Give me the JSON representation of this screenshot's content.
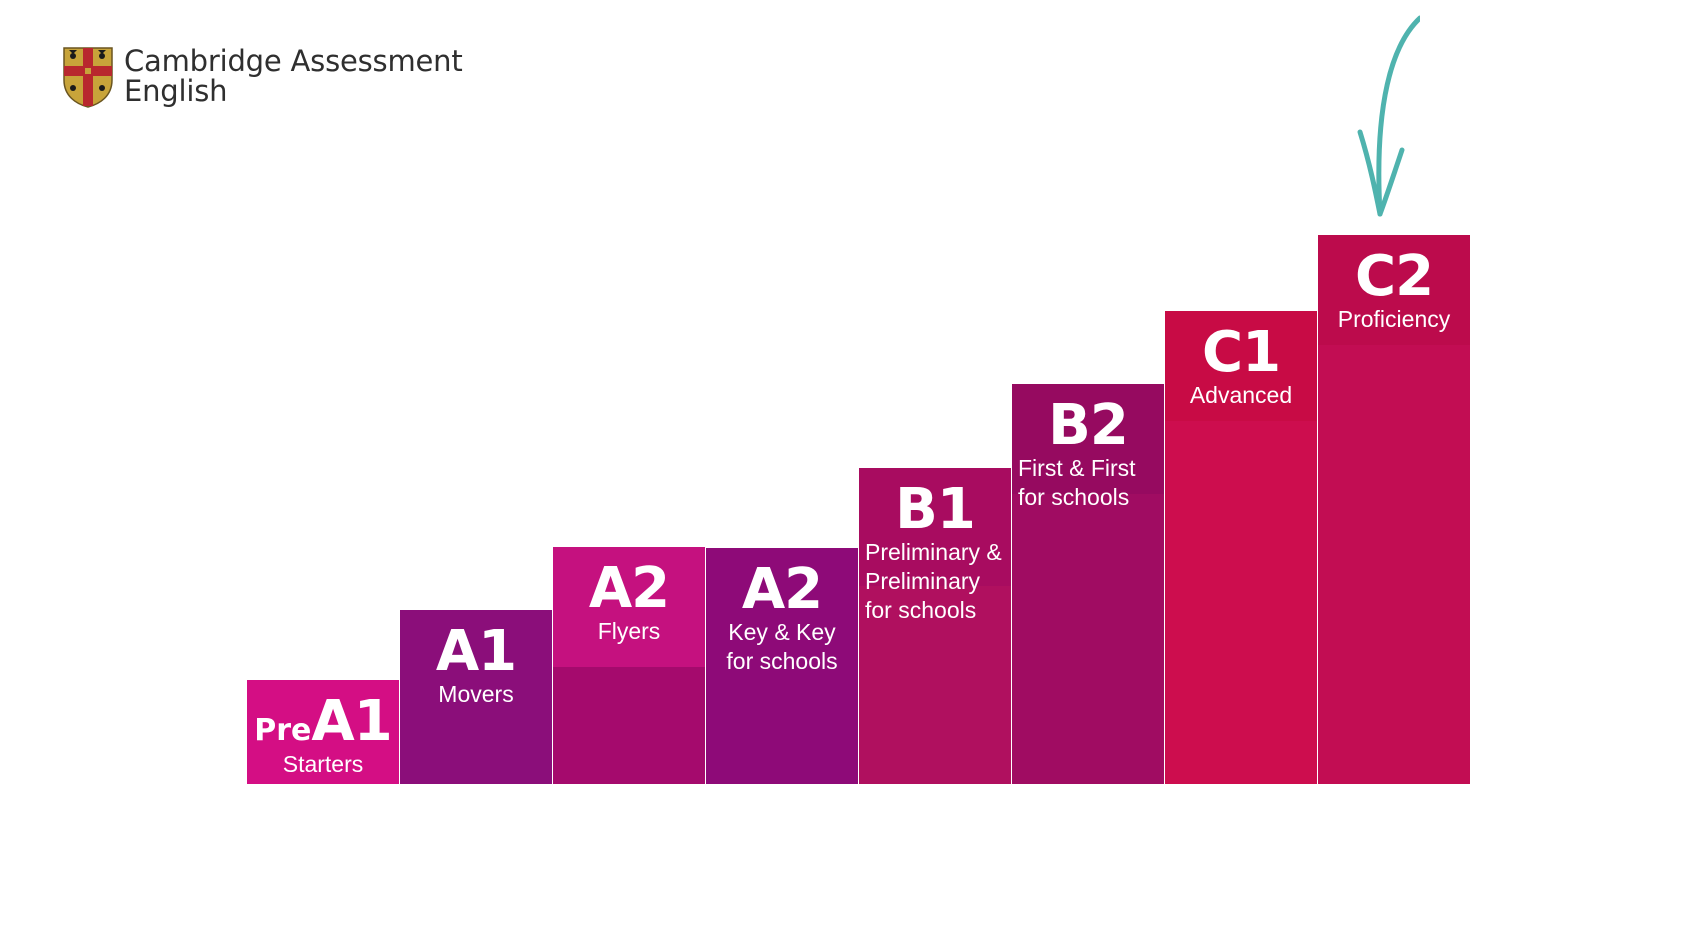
{
  "logo": {
    "line1": "Cambridge Assessment",
    "line2": "English"
  },
  "steps": [
    {
      "level_prefix": "Pre",
      "level": "A1",
      "exam": "Starters",
      "color": "#D40E84",
      "body_color": "#D40E84"
    },
    {
      "level": "A1",
      "exam": "Movers",
      "color": "#8B0E7A",
      "body_color": "#8B0E7A"
    },
    {
      "level": "A2",
      "exam": "Flyers",
      "color": "#C5117F",
      "body_color": "#A50A6D"
    },
    {
      "level": "A2",
      "exam": "Key & Key\nfor schools",
      "color": "#8E0A78",
      "body_color": "#8E0A78"
    },
    {
      "level": "B1",
      "exam": "Preliminary &\nPreliminary\nfor schools",
      "color": "#A80C60",
      "body_color": "#B0105F"
    },
    {
      "level": "B2",
      "exam": "First & First\nfor schools",
      "color": "#960A60",
      "body_color": "#A00C62"
    },
    {
      "level": "C1",
      "exam": "Advanced",
      "color": "#C80B45",
      "body_color": "#CD0D4E"
    },
    {
      "level": "C2",
      "exam": "Proficiency",
      "color": "#BC0B4C",
      "body_color": "#C20D53"
    }
  ],
  "arrow": {
    "icon": "down-arrow-icon",
    "color": "#4FB3AE"
  },
  "shield_colors": {
    "gold": "#C8A43A",
    "red": "#B8282E",
    "black": "#1b1b1b"
  }
}
